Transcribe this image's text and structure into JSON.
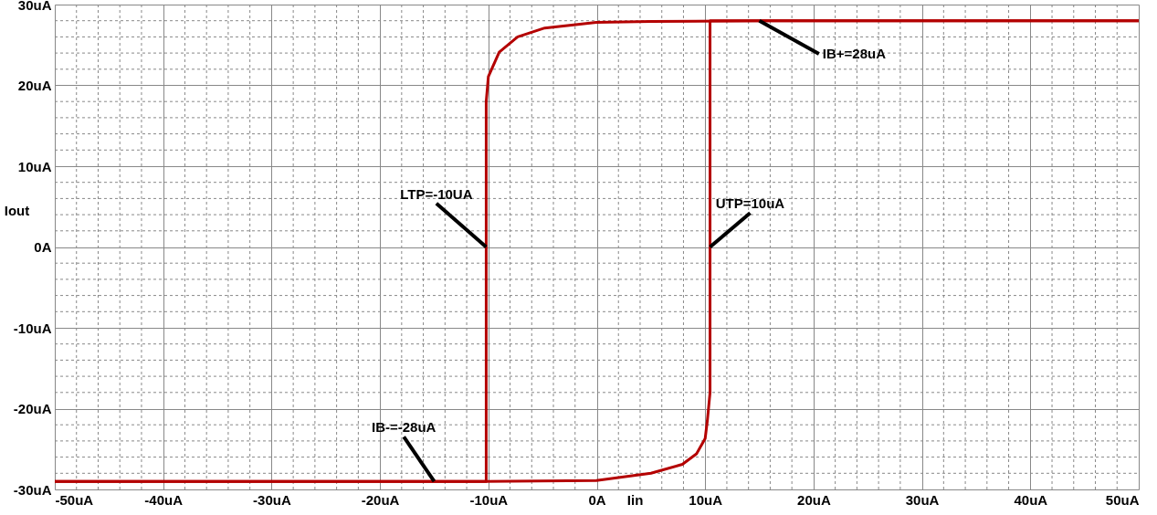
{
  "chart_data": {
    "type": "line",
    "xlabel": "Iin",
    "ylabel": "Iout",
    "series": [
      {
        "color": "#b40000",
        "x": [
          50,
          15,
          5,
          -0.04,
          -4.8,
          -7.3,
          -9.0,
          -10.0,
          -10.2,
          -10.2,
          -50
        ],
        "values": [
          28,
          28,
          27.9,
          27.8,
          27.1,
          26.0,
          24.1,
          21.1,
          18,
          -29,
          -29
        ]
      },
      {
        "color": "#b40000",
        "x": [
          -50,
          -15,
          -10.4,
          -0.04,
          5.0,
          7.9,
          9.2,
          10.0,
          10.2,
          10.45,
          10.45,
          50
        ],
        "values": [
          -29,
          -29,
          -29,
          -28.9,
          -28.0,
          -26.9,
          -25.6,
          -23.7,
          -21.5,
          -18,
          28,
          28
        ]
      }
    ],
    "xlim": [
      -50,
      50
    ],
    "ylim": [
      -30,
      30
    ],
    "xticks": [
      {
        "value": -50,
        "label": "-50uA"
      },
      {
        "value": -40,
        "label": "-40uA"
      },
      {
        "value": -30,
        "label": "-30uA"
      },
      {
        "value": -20,
        "label": "-20uA"
      },
      {
        "value": -10,
        "label": "-10uA"
      },
      {
        "value": 0,
        "label": "0A"
      },
      {
        "value": 10,
        "label": "10uA"
      },
      {
        "value": 20,
        "label": "20uA"
      },
      {
        "value": 30,
        "label": "30uA"
      },
      {
        "value": 40,
        "label": "40uA"
      },
      {
        "value": 50,
        "label": "50uA"
      }
    ],
    "yticks": [
      {
        "value": -30,
        "label": "-30uA"
      },
      {
        "value": -20,
        "label": "-20uA"
      },
      {
        "value": -10,
        "label": "-10uA"
      },
      {
        "value": 0,
        "label": "0A"
      },
      {
        "value": 10,
        "label": "10uA"
      },
      {
        "value": 20,
        "label": "20uA"
      },
      {
        "value": 30,
        "label": "30uA"
      }
    ],
    "grid": true,
    "line_style": "solid",
    "marker": "none",
    "annotations": [
      {
        "text": "IB+=28uA",
        "x": 15,
        "y": 28
      },
      {
        "text": "LTP=-10UA",
        "x": -10.2,
        "y": 0
      },
      {
        "text": "UTP=10uA",
        "x": 10.45,
        "y": 0
      },
      {
        "text": "IB-=-28uA",
        "x": -15,
        "y": -29
      }
    ]
  }
}
